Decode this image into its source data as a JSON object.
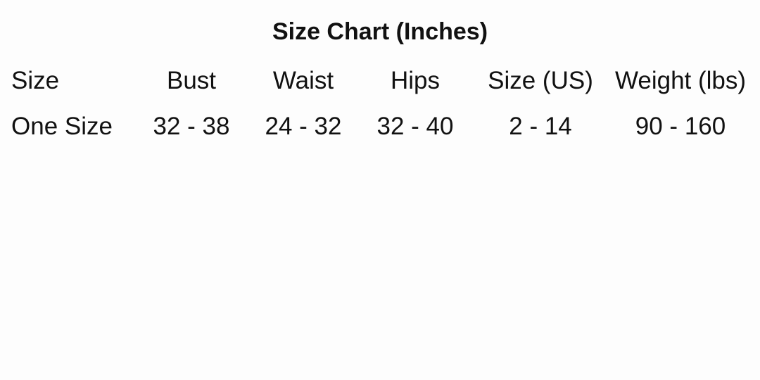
{
  "title": "Size Chart (Inches)",
  "headers": [
    "Size",
    "Bust",
    "Waist",
    "Hips",
    "Size (US)",
    "Weight (lbs)"
  ],
  "rows": [
    [
      "One Size",
      "32 - 38",
      "24 - 32",
      "32 - 40",
      "2 - 14",
      "90 - 160"
    ]
  ]
}
